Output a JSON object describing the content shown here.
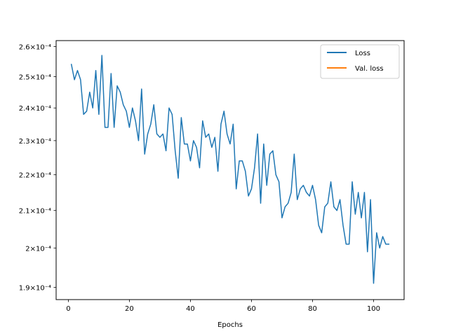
{
  "chart_data": {
    "type": "line",
    "title": "",
    "xlabel": "Epochs",
    "ylabel": "",
    "yscale": "log",
    "xlim": [
      -4,
      110
    ],
    "ylim": [
      0.000187,
      0.000262
    ],
    "xticks": [
      0,
      20,
      40,
      60,
      80,
      100
    ],
    "xtick_labels": [
      "0",
      "20",
      "40",
      "60",
      "80",
      "100"
    ],
    "yticks": [
      0.00019,
      0.0002,
      0.00021,
      0.00022,
      0.00023,
      0.00024,
      0.00025,
      0.00026
    ],
    "ytick_labels": [
      "1.9×10⁻⁴",
      "2×10⁻⁴",
      "2.1×10⁻⁴",
      "2.2×10⁻⁴",
      "2.3×10⁻⁴",
      "2.4×10⁻⁴",
      "2.5×10⁻⁴",
      "2.6×10⁻⁴"
    ],
    "grid": false,
    "legend_position": "top-right",
    "series": [
      {
        "name": "Loss",
        "color": "#1f77b4",
        "x": [
          1,
          2,
          3,
          4,
          5,
          6,
          7,
          8,
          9,
          10,
          11,
          12,
          13,
          14,
          15,
          16,
          17,
          18,
          19,
          20,
          21,
          22,
          23,
          24,
          25,
          26,
          27,
          28,
          29,
          30,
          31,
          32,
          33,
          34,
          35,
          36,
          37,
          38,
          39,
          40,
          41,
          42,
          43,
          44,
          45,
          46,
          47,
          48,
          49,
          50,
          51,
          52,
          53,
          54,
          55,
          56,
          57,
          58,
          59,
          60,
          61,
          62,
          63,
          64,
          65,
          66,
          67,
          68,
          69,
          70,
          71,
          72,
          73,
          74,
          75,
          76,
          77,
          78,
          79,
          80,
          81,
          82,
          83,
          84,
          85,
          86,
          87,
          88,
          89,
          90,
          91,
          92,
          93,
          94,
          95,
          96,
          97,
          98,
          99,
          100,
          101,
          102,
          103,
          104,
          105
        ],
        "y": [
          0.000254,
          0.000249,
          0.000252,
          0.000249,
          0.000238,
          0.000239,
          0.000245,
          0.00024,
          0.000252,
          0.000238,
          0.000257,
          0.000234,
          0.000234,
          0.000251,
          0.000234,
          0.000247,
          0.000245,
          0.000241,
          0.000239,
          0.000234,
          0.00024,
          0.000236,
          0.00023,
          0.000246,
          0.000226,
          0.000232,
          0.000235,
          0.000241,
          0.000232,
          0.000231,
          0.000232,
          0.000227,
          0.00024,
          0.000238,
          0.000227,
          0.000219,
          0.000237,
          0.000229,
          0.000229,
          0.000224,
          0.00023,
          0.000228,
          0.000222,
          0.000236,
          0.000231,
          0.000232,
          0.000228,
          0.000231,
          0.000221,
          0.000235,
          0.000239,
          0.000232,
          0.000229,
          0.000235,
          0.000216,
          0.000224,
          0.000224,
          0.000221,
          0.000214,
          0.000216,
          0.000222,
          0.000232,
          0.000212,
          0.000229,
          0.000217,
          0.000226,
          0.000227,
          0.00022,
          0.000218,
          0.000208,
          0.000211,
          0.000212,
          0.000215,
          0.000226,
          0.000213,
          0.000216,
          0.000217,
          0.000215,
          0.000214,
          0.000217,
          0.000213,
          0.000206,
          0.000204,
          0.000211,
          0.000212,
          0.000218,
          0.000211,
          0.00021,
          0.000213,
          0.000206,
          0.000201,
          0.000201,
          0.000218,
          0.000209,
          0.000215,
          0.000208,
          0.000215,
          0.000199,
          0.000213,
          0.000191,
          0.000204,
          0.0002,
          0.000203,
          0.000201,
          0.000201
        ]
      },
      {
        "name": "Val. loss",
        "color": "#ff7f0e",
        "x": [],
        "y": []
      }
    ]
  }
}
